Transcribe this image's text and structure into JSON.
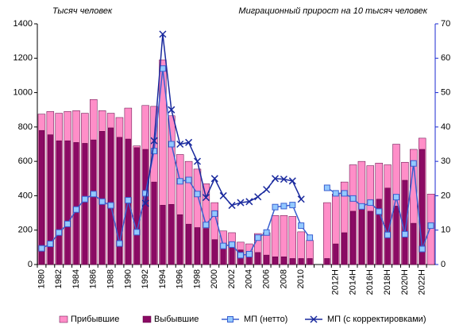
{
  "chart_data": {
    "type": "combo",
    "left_axis_label": "Тысяч человек",
    "right_axis_label": "Миграционный прирост на 10 тысяч человек",
    "categories": [
      "1980",
      null,
      "1982",
      null,
      "1984",
      null,
      "1986",
      null,
      "1988",
      null,
      "1990",
      null,
      "1992",
      null,
      "1994",
      null,
      "1996",
      null,
      "1998",
      null,
      "2000",
      null,
      "2002",
      null,
      "2004",
      null,
      "2006",
      null,
      "2008",
      null,
      "2010",
      null,
      null,
      null,
      "2012Н",
      null,
      "2014Н",
      null,
      "2016Н",
      null,
      "2018Н",
      null,
      "2020Н",
      null,
      "2022Н",
      null
    ],
    "series": [
      {
        "name": "Прибывшие",
        "type": "bar",
        "color": "#ff8ec8",
        "axis": "y",
        "values": [
          875,
          890,
          880,
          890,
          895,
          880,
          960,
          895,
          880,
          855,
          910,
          690,
          925,
          920,
          1190,
          865,
          640,
          600,
          555,
          470,
          360,
          195,
          185,
          130,
          120,
          180,
          185,
          285,
          285,
          280,
          190,
          140,
          null,
          360,
          410,
          480,
          580,
          600,
          575,
          590,
          580,
          700,
          595,
          670,
          735,
          410
        ]
      },
      {
        "name": "Выбывшие",
        "type": "bar",
        "color": "#8b0a64",
        "axis": "y",
        "values": [
          780,
          755,
          720,
          720,
          710,
          705,
          725,
          775,
          795,
          740,
          730,
          680,
          670,
          480,
          345,
          350,
          290,
          235,
          215,
          210,
          145,
          120,
          100,
          85,
          75,
          70,
          55,
          45,
          45,
          35,
          35,
          35,
          null,
          35,
          120,
          185,
          310,
          340,
          310,
          380,
          445,
          340,
          490,
          240,
          670,
          null
        ]
      },
      {
        "name": "МП  (нетто)",
        "type": "line",
        "marker": "square",
        "color": "#3a5fd0",
        "marker_color": "#93c9ff",
        "axis": "y2",
        "values": [
          4.7,
          6,
          9.3,
          11.8,
          16,
          19,
          20.5,
          18.3,
          17.2,
          6.1,
          18.7,
          9.4,
          20.7,
          33,
          57,
          35,
          24.2,
          24.6,
          20.5,
          11.5,
          14.8,
          5.4,
          5.8,
          2.7,
          3,
          7.8,
          9.3,
          16.7,
          17,
          17.3,
          11.3,
          7.8,
          null,
          22.3,
          20.7,
          20.7,
          19.2,
          16.9,
          18,
          15.4,
          8.6,
          19.6,
          8.8,
          29.4,
          4.5,
          11.3
        ]
      },
      {
        "name": "МП  (с корректировками)",
        "type": "line",
        "marker": "x",
        "color": "#1a2a9e",
        "axis": "y2",
        "values": [
          null,
          null,
          null,
          null,
          null,
          null,
          null,
          null,
          null,
          null,
          null,
          null,
          17.8,
          36,
          67,
          45,
          35,
          35.5,
          30,
          19.5,
          25,
          20,
          17.2,
          18,
          18.3,
          19.7,
          21.8,
          25,
          24.8,
          24.3,
          19,
          null,
          null,
          null,
          null,
          null,
          null,
          null,
          null,
          null,
          null,
          null,
          null,
          null,
          null,
          null
        ]
      }
    ],
    "ylim": [
      0,
      1400
    ],
    "yticks": [
      0,
      200,
      400,
      600,
      800,
      1000,
      1200,
      1400
    ],
    "y2lim": [
      0,
      70
    ],
    "y2ticks": [
      0,
      10,
      20,
      30,
      40,
      50,
      60,
      70
    ],
    "y2_color": "#1a2ad0",
    "legend": "bottom"
  }
}
